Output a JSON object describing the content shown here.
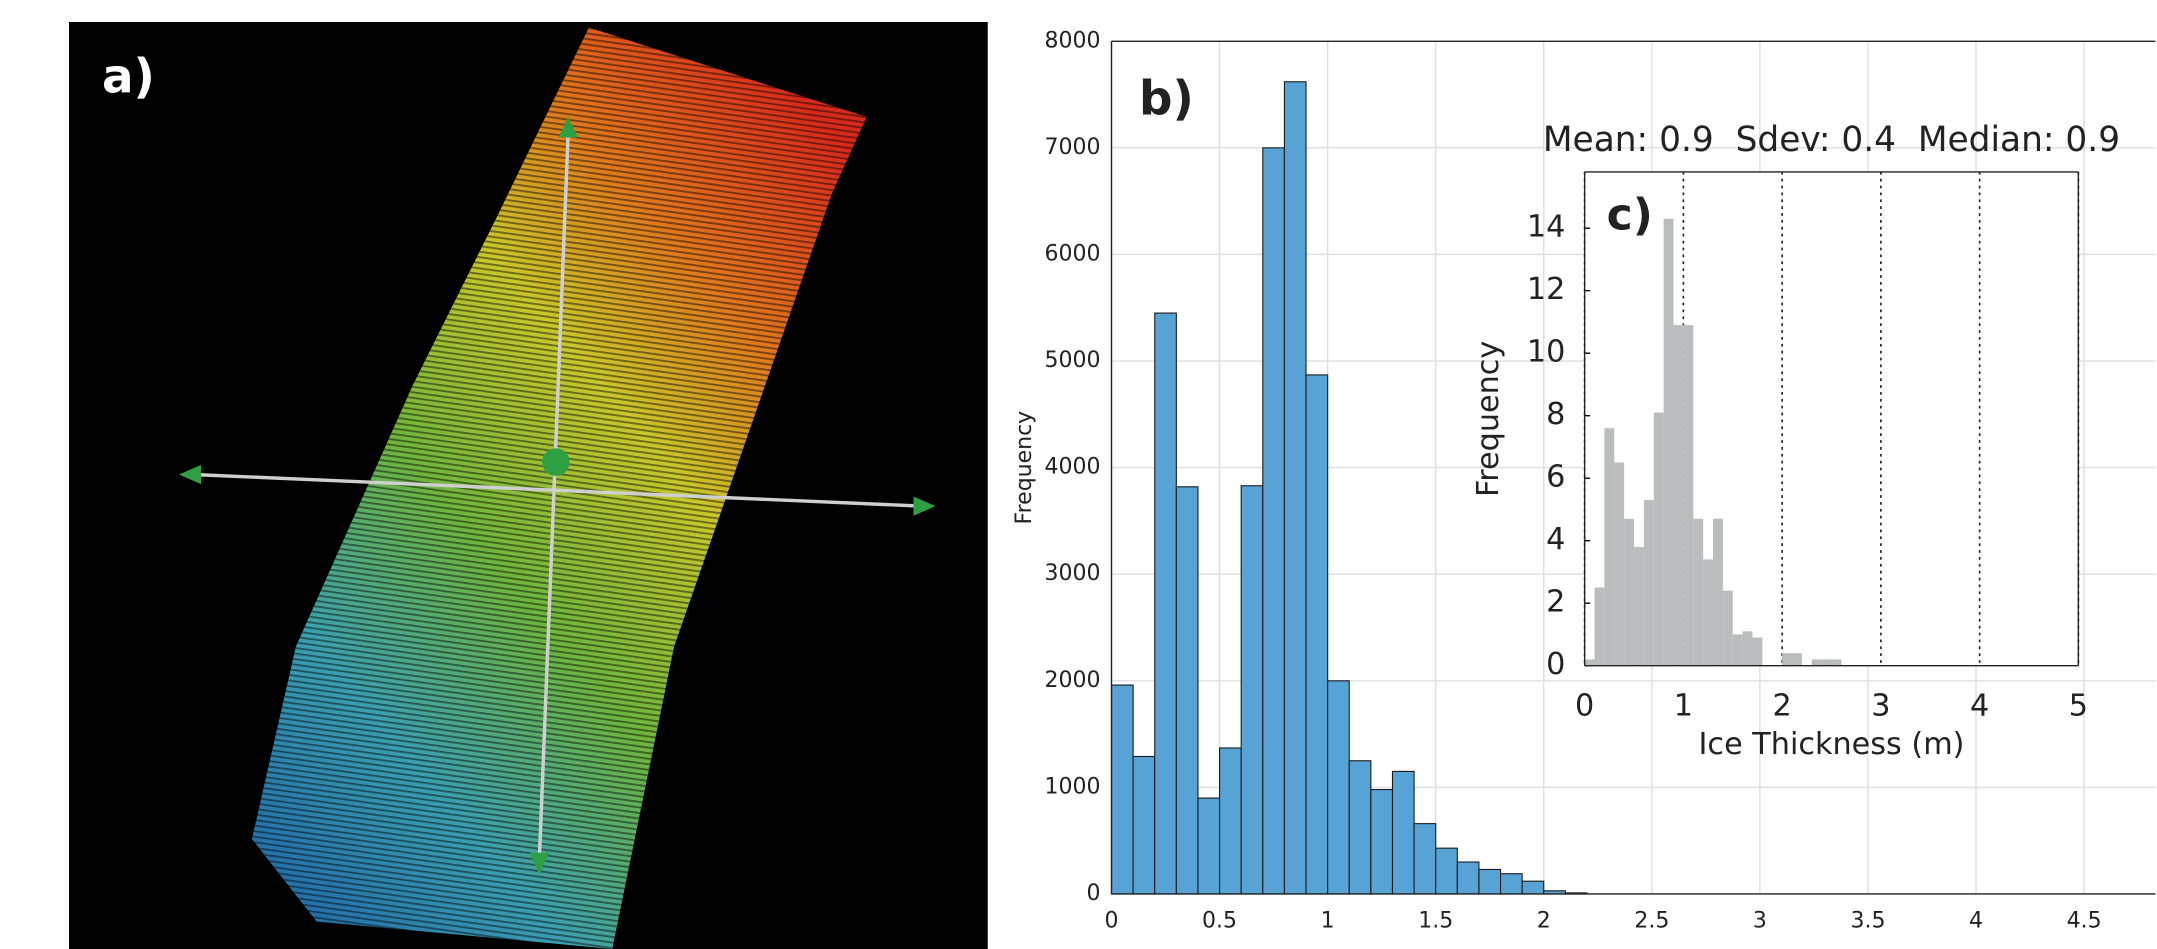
{
  "photo": {
    "label": "a)"
  },
  "chart_data": [
    {
      "type": "histogram",
      "label": "b)",
      "ylabel": "Frequency",
      "bins": [
        0,
        0.1,
        0.2,
        0.3,
        0.4,
        0.5,
        0.6,
        0.7,
        0.8,
        0.9,
        1.0,
        1.1,
        1.2,
        1.3,
        1.4,
        1.5,
        1.6,
        1.7,
        1.8,
        1.9,
        2.0,
        2.1,
        2.2
      ],
      "values": [
        1960,
        1290,
        5450,
        3820,
        900,
        1370,
        3830,
        7000,
        7620,
        4870,
        2000,
        1250,
        980,
        1150,
        660,
        430,
        300,
        230,
        190,
        120,
        30,
        10
      ],
      "color": "#58a3d6",
      "xlim": [
        0,
        4.83
      ],
      "xticks": [
        0,
        0.5,
        1,
        1.5,
        2,
        2.5,
        3,
        3.5,
        4,
        4.5
      ],
      "ylim": [
        0,
        8000
      ],
      "yticks": [
        0,
        1000,
        2000,
        3000,
        4000,
        5000,
        6000,
        7000,
        8000
      ],
      "grid": true
    },
    {
      "type": "histogram",
      "label": "c)",
      "title": "Mean: 0.9  Sdev: 0.4  Median: 0.9",
      "xlabel": "Ice Thickness (m)",
      "ylabel": "Frequency",
      "bins": [
        0,
        0.1,
        0.2,
        0.3,
        0.4,
        0.5,
        0.6,
        0.7,
        0.8,
        0.9,
        1.0,
        1.1,
        1.2,
        1.3,
        1.4,
        1.5,
        1.6,
        1.7,
        1.8,
        1.9,
        2.0,
        2.1,
        2.2,
        2.3,
        2.4,
        2.5,
        2.6
      ],
      "values": [
        0.2,
        2.5,
        7.6,
        6.5,
        4.7,
        3.8,
        5.3,
        8.1,
        14.3,
        10.9,
        10.9,
        4.7,
        3.4,
        4.7,
        2.4,
        1.0,
        1.1,
        0.9,
        0,
        0,
        0.4,
        0.4,
        0,
        0.2,
        0.2,
        0.2
      ],
      "color": "#b9bdbd",
      "xlim": [
        0,
        5
      ],
      "xticks": [
        0,
        1,
        2,
        3,
        4,
        5
      ],
      "ylim": [
        0,
        15.8
      ],
      "yticks": [
        0,
        2,
        4,
        6,
        8,
        10,
        12,
        14
      ],
      "grid": "dotted"
    }
  ]
}
